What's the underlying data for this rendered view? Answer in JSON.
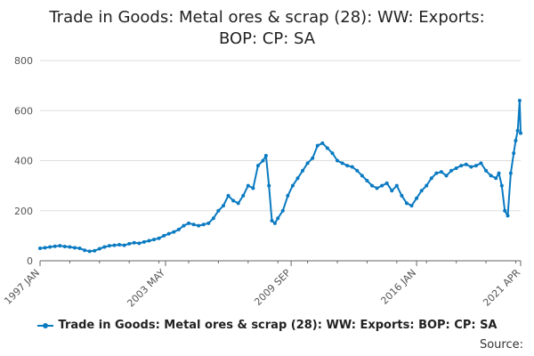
{
  "title_lines": [
    "Trade in Goods: Metal ores & scrap (28): WW: Exports:",
    "BOP: CP: SA"
  ],
  "legend_label": "Trade in Goods: Metal ores & scrap (28): WW: Exports: BOP: CP: SA",
  "source_label": "Source:",
  "colors": {
    "series": "#0a7ac1",
    "grid": "#dddddd",
    "axis": "#666666"
  },
  "chart_data": {
    "type": "line",
    "title": "Trade in Goods: Metal ores & scrap (28): WW: Exports: BOP: CP: SA",
    "x_tick_labels": [
      "1997 JAN",
      "2003 MAY",
      "2009 SEP",
      "2016 JAN",
      "2021 APR"
    ],
    "x_tick_positions": [
      1997.0,
      2003.33,
      2009.67,
      2016.0,
      2021.25
    ],
    "xlim": [
      1997.0,
      2021.25
    ],
    "y_tick_labels": [
      "0",
      "200",
      "400",
      "600",
      "800"
    ],
    "ylim": [
      0,
      800
    ],
    "grid": true,
    "legend_position": "bottom",
    "series": [
      {
        "name": "Trade in Goods: Metal ores & scrap (28): WW: Exports: BOP: CP: SA",
        "x": [
          1997.0,
          1997.25,
          1997.5,
          1997.75,
          1998.0,
          1998.25,
          1998.5,
          1998.75,
          1999.0,
          1999.25,
          1999.5,
          1999.75,
          2000.0,
          2000.25,
          2000.5,
          2000.75,
          2001.0,
          2001.25,
          2001.5,
          2001.75,
          2002.0,
          2002.25,
          2002.5,
          2002.75,
          2003.0,
          2003.25,
          2003.5,
          2003.75,
          2004.0,
          2004.25,
          2004.5,
          2004.75,
          2005.0,
          2005.25,
          2005.5,
          2005.75,
          2006.0,
          2006.25,
          2006.5,
          2006.75,
          2007.0,
          2007.25,
          2007.5,
          2007.75,
          2008.0,
          2008.25,
          2008.4,
          2008.55,
          2008.7,
          2008.85,
          2009.0,
          2009.25,
          2009.5,
          2009.75,
          2010.0,
          2010.25,
          2010.5,
          2010.75,
          2011.0,
          2011.25,
          2011.5,
          2011.75,
          2012.0,
          2012.25,
          2012.5,
          2012.75,
          2013.0,
          2013.25,
          2013.5,
          2013.75,
          2014.0,
          2014.25,
          2014.5,
          2014.75,
          2015.0,
          2015.25,
          2015.5,
          2015.75,
          2016.0,
          2016.25,
          2016.5,
          2016.75,
          2017.0,
          2017.25,
          2017.5,
          2017.75,
          2018.0,
          2018.25,
          2018.5,
          2018.75,
          2019.0,
          2019.25,
          2019.5,
          2019.75,
          2020.0,
          2020.15,
          2020.3,
          2020.45,
          2020.6,
          2020.75,
          2020.9,
          2021.0,
          2021.1,
          2021.2,
          2021.25
        ],
        "values": [
          50,
          52,
          55,
          58,
          60,
          57,
          55,
          52,
          50,
          42,
          38,
          40,
          48,
          55,
          60,
          62,
          64,
          62,
          68,
          72,
          70,
          75,
          80,
          85,
          90,
          100,
          108,
          115,
          125,
          140,
          150,
          145,
          140,
          145,
          150,
          170,
          200,
          220,
          260,
          240,
          230,
          260,
          300,
          290,
          380,
          400,
          420,
          300,
          160,
          150,
          170,
          200,
          260,
          300,
          330,
          360,
          390,
          410,
          460,
          470,
          450,
          430,
          400,
          390,
          380,
          375,
          360,
          340,
          320,
          300,
          290,
          300,
          310,
          280,
          300,
          260,
          230,
          220,
          250,
          280,
          300,
          330,
          350,
          355,
          340,
          360,
          370,
          380,
          385,
          375,
          380,
          390,
          360,
          340,
          330,
          350,
          300,
          200,
          180,
          350,
          430,
          480,
          520,
          640,
          510
        ]
      }
    ]
  }
}
